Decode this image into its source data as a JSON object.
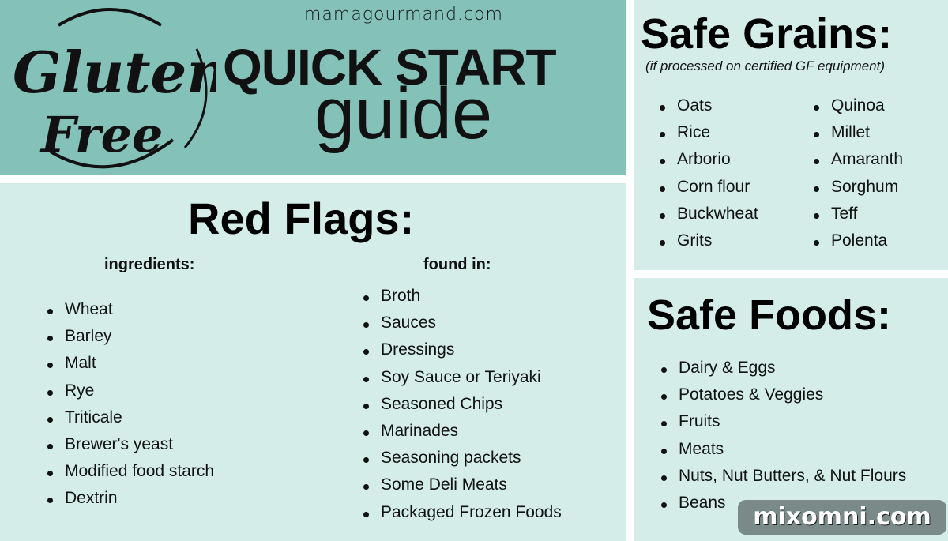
{
  "header": {
    "logo_text": "Gluten Free",
    "site": "mamagourmand.com",
    "title": "QUICK START",
    "subtitle": "guide"
  },
  "red_flags": {
    "title": "Red Flags:",
    "ingredients_label": "ingredients:",
    "ingredients": [
      "Wheat",
      "Barley",
      "Malt",
      "Rye",
      "Triticale",
      "Brewer's yeast",
      "Modified food starch",
      "Dextrin"
    ],
    "found_in_label": "found in:",
    "found_in": [
      "Broth",
      "Sauces",
      "Dressings",
      "Soy Sauce or Teriyaki",
      "Seasoned Chips",
      "Marinades",
      "Seasoning packets",
      "Some Deli Meats",
      "Packaged Frozen Foods"
    ]
  },
  "safe_grains": {
    "title": "Safe Grains:",
    "note": "(if processed on certified GF equipment)",
    "col1": [
      "Oats",
      "Rice",
      "Arborio",
      "Corn flour",
      "Buckwheat",
      "Grits"
    ],
    "col2": [
      "Quinoa",
      "Millet",
      "Amaranth",
      "Sorghum",
      "Teff",
      "Polenta"
    ]
  },
  "safe_foods": {
    "title": "Safe Foods:",
    "items": [
      "Dairy & Eggs",
      "Potatoes & Veggies",
      "Fruits",
      "Meats",
      "Nuts, Nut Butters, & Nut Flours",
      "Beans"
    ]
  },
  "watermark": "mixomni.com",
  "colors": {
    "header": "#84c1b9",
    "panel": "#d4ede9"
  }
}
